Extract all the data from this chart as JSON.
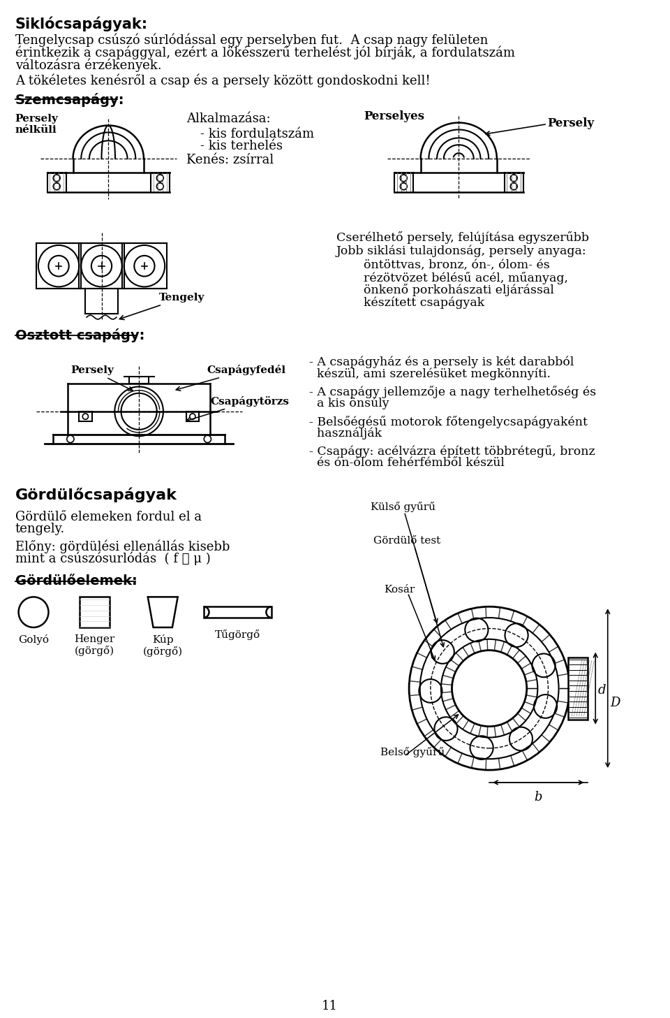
{
  "bg_color": "#ffffff",
  "page_number": "11",
  "title1": "Siklócsapágyak:",
  "para1_lines": [
    "Tengelycsap csúszó súrlódással egy perselyben fut.  A csap nagy felületen",
    "érintkezik a csapággyal, ezért a lökésszerű terhelést jól bírják, a fordulatszám",
    "változásra érzékenyek."
  ],
  "para2": "A tökéletes kenésről a csap és a persely között gondoskodni kell!",
  "section1": "Szemcsapágy:",
  "label_persely_nelkuli": "Persely\nnélküli",
  "label_alkalmazasa": "Alkalmazása:",
  "bullet1": "kis fordulatszám",
  "bullet2": "kis terhelés",
  "label_kenes": "Kenés: zsírral",
  "label_perselyes": "Perselyes",
  "label_persely_right": "Persely",
  "text_csere1": "Cserélhető persely, felújítása egyszerűbb",
  "text_csere2": "Jobb siklási tulajdonság, persely anyaga:",
  "text_csere3": "öntöttvas, bronz, ón-, ólom- és",
  "text_csere4": "rézötvözet bélésű acél, műanyag,",
  "text_csere5": "önkenő porkohászati eljárással",
  "text_csere6": "készített csapágyak",
  "label_tengely": "Tengely",
  "section2": "Osztott csapágy:",
  "label_persely2": "Persely",
  "label_csapagyfedel": "Csapágyfedél",
  "label_csapagy_torzs": "Csapágytörzs",
  "bullet_o1a": "- A csapágyház és a persely is két darabból",
  "bullet_o1b": "  készül, ami szerelésüket megkönnyíti.",
  "bullet_o2a": "- A csapágy jellemzője a nagy terhelhetőség és",
  "bullet_o2b": "  a kis önsúly",
  "bullet_o3a": "- Belsőégésű motorok főtengelycsapágyaként",
  "bullet_o3b": "  használják",
  "bullet_o4a": "- Csapágy: acélvázra épített többrétegű, bronz",
  "bullet_o4b": "  és ón-ólom fehérfémből készül",
  "section3": "Gördülőcsapágyak",
  "text_g1": "Gördülő elemeken fordul el a",
  "text_g2": "tengely.",
  "text_g3": "Előny: gördülési ellenállás kisebb",
  "text_g4": "mint a csúszósurlódás  ( f ≪ μ )",
  "section4": "Gördülőelemek:",
  "label_golyo": "Golyó",
  "label_henger": "Henger\n(görgő)",
  "label_kup": "Kúp\n(görgő)",
  "label_tugorgro": "Tűgörgő",
  "label_kulso_gyuru": "Külső gyűrű",
  "label_gordulo_test": "Gördülő test",
  "label_kosar": "Kosár",
  "label_belso_gyuru": "Belső gyűrű",
  "label_d": "d",
  "label_D": "D",
  "label_b": "b"
}
